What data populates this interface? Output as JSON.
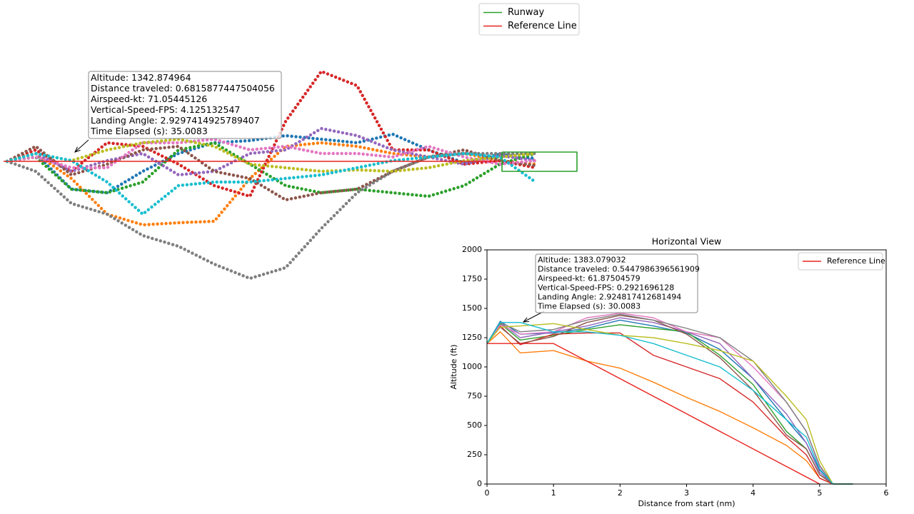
{
  "chart_data": [
    {
      "type": "line",
      "axes": false,
      "line_style": "dotted",
      "legend": "upper right",
      "x": [
        10,
        50,
        100,
        150,
        200,
        250,
        300,
        350,
        400,
        450,
        500,
        550,
        600,
        650,
        700,
        750
      ],
      "xlim": [
        0,
        812
      ],
      "ylim": [
        -174,
        136
      ],
      "annotation": {
        "lines": [
          "Altitude: 1342.874964",
          "Distance traveled: 0.6815877447504056",
          "Airspeed-kt: 71.05445126",
          "Vertical-Speed-FPS: 4.125132547",
          "Landing Angle: 2.9297414925789407",
          "Time Elapsed (s): 35.0083"
        ]
      },
      "series": [
        {
          "color": "#1f77b4",
          "values": [
            0,
            11,
            -39,
            -44,
            -14,
            11,
            26,
            29,
            36,
            31,
            26,
            38,
            16,
            -2,
            10,
            4
          ]
        },
        {
          "color": "#ff7f0e",
          "values": [
            0,
            11,
            -24,
            -74,
            -89,
            -86,
            -84,
            -24,
            21,
            26,
            21,
            11,
            6,
            11,
            1,
            -4
          ]
        },
        {
          "color": "#2ca02c",
          "values": [
            0,
            6,
            -39,
            -44,
            -29,
            16,
            26,
            -4,
            -34,
            -44,
            -39,
            -44,
            -49,
            -34,
            -4,
            11
          ]
        },
        {
          "color": "#d62728",
          "values": [
            0,
            16,
            -14,
            26,
            21,
            -4,
            -34,
            -49,
            56,
            126,
            106,
            16,
            16,
            -4,
            1,
            -9
          ]
        },
        {
          "color": "#9467bd",
          "values": [
            0,
            11,
            -14,
            1,
            11,
            -19,
            -14,
            11,
            16,
            46,
            36,
            16,
            6,
            -4,
            8,
            1
          ]
        },
        {
          "color": "#8c564b",
          "values": [
            0,
            21,
            -19,
            -4,
            16,
            21,
            -14,
            -24,
            -54,
            -44,
            -39,
            -14,
            6,
            16,
            1,
            -6
          ]
        },
        {
          "color": "#e377c2",
          "values": [
            0,
            6,
            -9,
            -9,
            26,
            26,
            31,
            16,
            21,
            11,
            11,
            6,
            21,
            6,
            -4,
            1
          ]
        },
        {
          "color": "#7f7f7f",
          "values": [
            0,
            -14,
            -59,
            -74,
            -104,
            -119,
            -144,
            -164,
            -149,
            -94,
            -44,
            -14,
            6,
            11,
            11,
            11
          ]
        },
        {
          "color": "#bcbd22",
          "values": [
            0,
            11,
            1,
            16,
            26,
            31,
            21,
            -4,
            -9,
            -14,
            -12,
            -14,
            -9,
            1,
            6,
            11
          ]
        },
        {
          "color": "#17becf",
          "values": [
            0,
            11,
            1,
            -29,
            -74,
            -34,
            -29,
            -29,
            -24,
            -19,
            -9,
            1,
            6,
            11,
            6,
            -29
          ]
        },
        {
          "name": "Runway",
          "color": "#2ca02c",
          "line_style": "solid",
          "x": [
            703,
            808,
            808,
            703,
            703
          ],
          "values": [
            13,
            13,
            -14,
            -14,
            13
          ]
        },
        {
          "name": "Reference Line",
          "color": "#e8231f",
          "line_style": "solid",
          "x": [
            5,
            700
          ],
          "values": [
            0,
            0
          ]
        }
      ]
    },
    {
      "type": "line",
      "title": "Horizontal View",
      "x_label": "Distance from start (nm)",
      "y_label": "Altitude (ft)",
      "legend": "upper right",
      "x": [
        0,
        0.2,
        0.5,
        1,
        1.5,
        2,
        2.5,
        3,
        3.5,
        4,
        4.5,
        4.8,
        5,
        5.2,
        5.5
      ],
      "xlim": [
        0,
        6
      ],
      "xticks": [
        0,
        1,
        2,
        3,
        4,
        5,
        6
      ],
      "ylim": [
        0,
        2000
      ],
      "yticks": [
        0,
        250,
        500,
        750,
        1000,
        1250,
        1500,
        1750,
        2000
      ],
      "annotation": {
        "lines": [
          "Altitude: 1383.079032",
          "Distance traveled: 0.5447986396561909",
          "Airspeed-kt: 61.87504579",
          "Vertical-Speed-FPS: 0.2921696128",
          "Landing Angle: 2.924817412681494",
          "Time Elapsed (s): 30.0083"
        ]
      },
      "series": [
        {
          "color": "#1f77b4",
          "values": [
            1200,
            1390,
            1280,
            1290,
            1330,
            1400,
            1350,
            1290,
            1150,
            900,
            550,
            350,
            120,
            0,
            0
          ]
        },
        {
          "color": "#ff7f0e",
          "values": [
            1200,
            1300,
            1120,
            1140,
            1050,
            990,
            870,
            740,
            620,
            480,
            330,
            200,
            50,
            0,
            0
          ]
        },
        {
          "color": "#2ca02c",
          "values": [
            1200,
            1370,
            1230,
            1270,
            1320,
            1360,
            1330,
            1300,
            1100,
            850,
            450,
            300,
            80,
            0,
            0
          ]
        },
        {
          "color": "#d62728",
          "values": [
            1200,
            1350,
            1190,
            1280,
            1290,
            1290,
            1100,
            1000,
            900,
            700,
            400,
            250,
            50,
            0,
            0
          ]
        },
        {
          "color": "#9467bd",
          "values": [
            1200,
            1380,
            1250,
            1300,
            1350,
            1420,
            1380,
            1300,
            1200,
            900,
            600,
            350,
            100,
            0,
            0
          ]
        },
        {
          "color": "#8c564b",
          "values": [
            1200,
            1340,
            1200,
            1260,
            1380,
            1440,
            1400,
            1280,
            1080,
            800,
            420,
            300,
            80,
            0,
            0
          ]
        },
        {
          "color": "#e377c2",
          "values": [
            1200,
            1360,
            1280,
            1300,
            1420,
            1460,
            1420,
            1300,
            1250,
            1000,
            700,
            450,
            150,
            0,
            0
          ]
        },
        {
          "color": "#7f7f7f",
          "values": [
            1200,
            1380,
            1300,
            1320,
            1400,
            1450,
            1400,
            1330,
            1250,
            1050,
            700,
            450,
            160,
            0,
            0
          ]
        },
        {
          "color": "#bcbd22",
          "values": [
            1200,
            1340,
            1350,
            1370,
            1320,
            1270,
            1250,
            1200,
            1140,
            1050,
            750,
            550,
            200,
            0,
            0
          ]
        },
        {
          "color": "#17becf",
          "values": [
            1200,
            1380,
            1380,
            1300,
            1300,
            1270,
            1200,
            1100,
            1000,
            800,
            550,
            400,
            130,
            0,
            0
          ]
        },
        {
          "name": "Reference Line",
          "color": "#e8231f",
          "x": [
            0,
            1,
            5
          ],
          "values": [
            1200,
            1200,
            0
          ]
        }
      ]
    }
  ]
}
